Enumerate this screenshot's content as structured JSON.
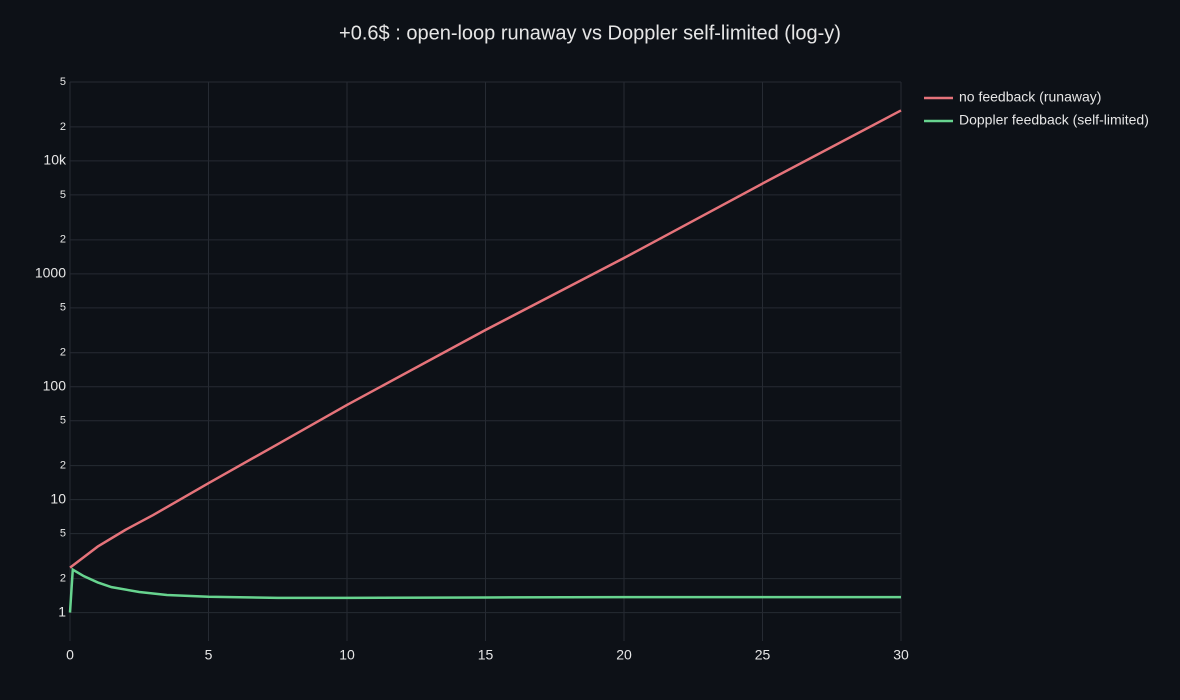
{
  "chart_data": {
    "type": "line",
    "title": "+0.6$ : open-loop runaway vs Doppler self-limited (log-y)",
    "log_y": true,
    "grid": true,
    "legend": "top-right",
    "xlim": [
      0,
      30
    ],
    "xticks": [
      0,
      5,
      10,
      15,
      20,
      25,
      30
    ],
    "ylim": [
      0.56,
      50000
    ],
    "yticks": [
      1,
      2,
      5,
      10,
      {
        "value": 20,
        "label": "2"
      },
      {
        "value": 50,
        "label": "5"
      },
      100,
      {
        "value": 200,
        "label": "2"
      },
      {
        "value": 500,
        "label": "5"
      },
      1000,
      {
        "value": 2000,
        "label": "2"
      },
      {
        "value": 5000,
        "label": "5"
      },
      {
        "value": 10000,
        "label": "10k"
      },
      {
        "value": 20000,
        "label": "2"
      },
      {
        "value": 50000,
        "label": "5"
      }
    ],
    "series": [
      {
        "name": "no feedback (runaway)",
        "color": "#e5737a",
        "x": [
          0,
          0.5,
          1,
          2,
          3,
          5,
          7.5,
          10,
          15,
          20,
          25,
          30
        ],
        "values": [
          2.5,
          3.1,
          3.84,
          5.4,
          7.3,
          14,
          31,
          69,
          318,
          1380,
          6300,
          28000
        ]
      },
      {
        "name": "Doppler feedback (self-limited)",
        "color": "#67d48f",
        "x": [
          0,
          0.1,
          0.5,
          1,
          1.5,
          2.5,
          3.5,
          5,
          7.5,
          10,
          15,
          20,
          25,
          30
        ],
        "values": [
          1,
          2.4,
          2.1,
          1.85,
          1.68,
          1.52,
          1.43,
          1.38,
          1.35,
          1.35,
          1.36,
          1.37,
          1.37,
          1.37
        ]
      }
    ]
  }
}
